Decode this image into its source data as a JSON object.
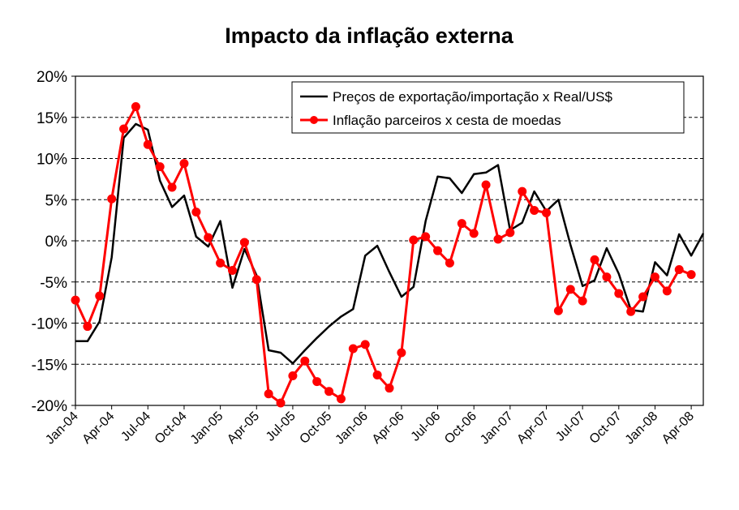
{
  "chart_data": {
    "type": "line",
    "title": "Impacto da inflação externa",
    "ylim": [
      -20,
      20
    ],
    "y_ticks": [
      20,
      15,
      10,
      5,
      0,
      -5,
      -10,
      -15,
      -20
    ],
    "y_tick_labels": [
      "20%",
      "15%",
      "10%",
      "5%",
      "0%",
      "-5%",
      "-10%",
      "-15%",
      "-20%"
    ],
    "x_tick_labels": [
      "Jan-04",
      "Apr-04",
      "Jul-04",
      "Oct-04",
      "Jan-05",
      "Apr-05",
      "Jul-05",
      "Oct-05",
      "Jan-06",
      "Apr-06",
      "Jul-06",
      "Oct-06",
      "Jan-07",
      "Apr-07",
      "Jul-07",
      "Oct-07",
      "Jan-08",
      "Apr-08"
    ],
    "grid": true,
    "legend_position": "top-right",
    "series": [
      {
        "name": "Preços de exportação/importação x Real/US$",
        "color": "#000000",
        "marker": "none",
        "values": [
          -12.2,
          -12.2,
          -9.8,
          -2.0,
          12.5,
          14.2,
          13.5,
          7.3,
          4.1,
          5.5,
          0.5,
          -0.7,
          2.4,
          -5.7,
          -1.0,
          -4.2,
          -13.3,
          -13.6,
          -14.9,
          -13.3,
          -11.8,
          -10.4,
          -9.2,
          -8.3,
          -1.8,
          -0.6,
          -3.8,
          -6.8,
          -5.6,
          2.4,
          7.8,
          7.6,
          5.8,
          8.1,
          8.3,
          9.2,
          1.3,
          2.2,
          6.0,
          3.6,
          5.0,
          -0.5,
          -5.5,
          -4.8,
          -0.9,
          -4.0,
          -8.4,
          -8.6,
          -2.6,
          -4.2,
          0.8,
          -1.8,
          0.9
        ]
      },
      {
        "name": "Inflação parceiros x cesta de moedas",
        "color": "#ff0000",
        "marker": "circle",
        "values": [
          -7.2,
          -10.4,
          -6.7,
          5.1,
          13.6,
          16.3,
          11.7,
          9.0,
          6.5,
          9.4,
          3.5,
          0.4,
          -2.7,
          -3.6,
          -0.2,
          -4.7,
          -18.6,
          -19.7,
          -16.4,
          -14.6,
          -17.1,
          -18.3,
          -19.2,
          -13.1,
          -12.6,
          -16.3,
          -17.9,
          -13.6,
          0.1,
          0.5,
          -1.2,
          -2.7,
          2.1,
          0.9,
          6.8,
          0.2,
          1.0,
          6.0,
          3.7,
          3.4,
          -8.5,
          -5.9,
          -7.3,
          -2.3,
          -4.4,
          -6.4,
          -8.6,
          -6.8,
          -4.4,
          -6.1,
          -3.5,
          -4.1
        ]
      }
    ]
  }
}
